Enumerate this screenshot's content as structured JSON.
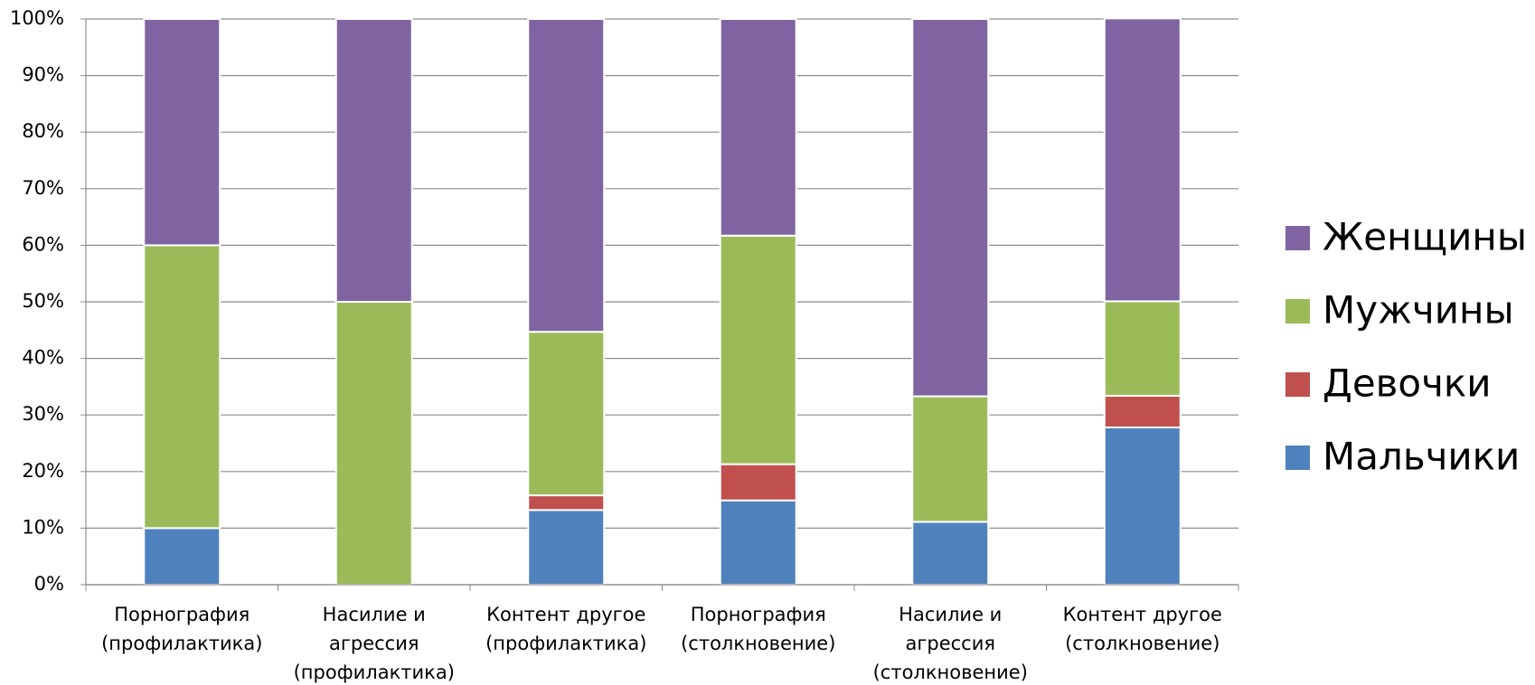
{
  "chart_data": {
    "type": "stacked_bar",
    "categories": [
      [
        "Порнография",
        "(профилактика)"
      ],
      [
        "Насилие и",
        "агрессия",
        "(профилактика)"
      ],
      [
        "Контент другое",
        "(профилактика)"
      ],
      [
        "Порнография",
        "(столкновение)"
      ],
      [
        "Насилие и",
        "агрессия",
        "(столкновение)"
      ],
      [
        "Контент другое",
        "(столкновение)"
      ]
    ],
    "series": [
      {
        "name": "Мальчики",
        "color": "#4f81bd",
        "values": [
          10,
          0,
          13.2,
          14.9,
          11.1,
          27.8
        ]
      },
      {
        "name": "Девочки",
        "color": "#c0504d",
        "values": [
          0,
          0,
          2.6,
          6.4,
          0,
          5.6
        ]
      },
      {
        "name": "Мужчины",
        "color": "#9bbb59",
        "values": [
          50,
          50,
          28.9,
          40.4,
          22.2,
          16.7
        ]
      },
      {
        "name": "Женщины",
        "color": "#8064a2",
        "values": [
          40,
          50,
          55.3,
          38.3,
          66.7,
          50
        ]
      }
    ],
    "ylim": [
      0,
      100
    ],
    "yticks": [
      {
        "value": 0,
        "label": "0%"
      },
      {
        "value": 10,
        "label": "10%"
      },
      {
        "value": 20,
        "label": "20%"
      },
      {
        "value": 30,
        "label": "30%"
      },
      {
        "value": 40,
        "label": "40%"
      },
      {
        "value": 50,
        "label": "50%"
      },
      {
        "value": 60,
        "label": "60%"
      },
      {
        "value": 70,
        "label": "70%"
      },
      {
        "value": 80,
        "label": "80%"
      },
      {
        "value": 90,
        "label": "90%"
      },
      {
        "value": 100,
        "label": "100%"
      }
    ],
    "grid": true,
    "legend": "right"
  }
}
